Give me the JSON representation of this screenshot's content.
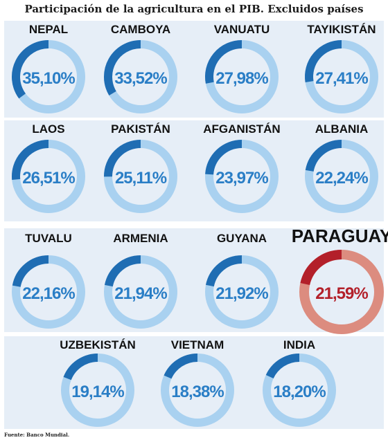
{
  "title": "Participación de la agricultura en el PIB. Excluidos países africanos",
  "source": "Fuente: Banco Mundial.",
  "colors": {
    "ring_dark": "#1f6db3",
    "ring_light": "#a9d1f0",
    "text_blue": "#2a7ec6",
    "highlight_dark": "#b3202a",
    "highlight_light": "#dc8c7f",
    "highlight_text": "#b3202a",
    "band": "#e6eef7"
  },
  "chart_data": {
    "type": "donut",
    "title": "Participación de la agricultura en el PIB. Excluidos países africanos",
    "unit": "%",
    "items": [
      {
        "country": "NEPAL",
        "label": "35,10%",
        "value": 35.1
      },
      {
        "country": "CAMBOYA",
        "label": "33,52%",
        "value": 33.52
      },
      {
        "country": "VANUATU",
        "label": "27,98%",
        "value": 27.98
      },
      {
        "country": "TAYIKISTÁN",
        "label": "27,41%",
        "value": 27.41
      },
      {
        "country": "LAOS",
        "label": "26,51%",
        "value": 26.51
      },
      {
        "country": "PAKISTÁN",
        "label": "25,11%",
        "value": 25.11
      },
      {
        "country": "AFGANISTÁN",
        "label": "23,97%",
        "value": 23.97
      },
      {
        "country": "ALBANIA",
        "label": "22,24%",
        "value": 22.24
      },
      {
        "country": "TUVALU",
        "label": "22,16%",
        "value": 22.16
      },
      {
        "country": "ARMENIA",
        "label": "21,94%",
        "value": 21.94
      },
      {
        "country": "GUYANA",
        "label": "21,92%",
        "value": 21.92
      },
      {
        "country": "PARAGUAY",
        "label": "21,59%",
        "value": 21.59,
        "highlight": true
      },
      {
        "country": "UZBEKISTÁN",
        "label": "19,14%",
        "value": 19.14
      },
      {
        "country": "VIETNAM",
        "label": "18,38%",
        "value": 18.38
      },
      {
        "country": "INDIA",
        "label": "18,20%",
        "value": 18.2
      }
    ]
  }
}
